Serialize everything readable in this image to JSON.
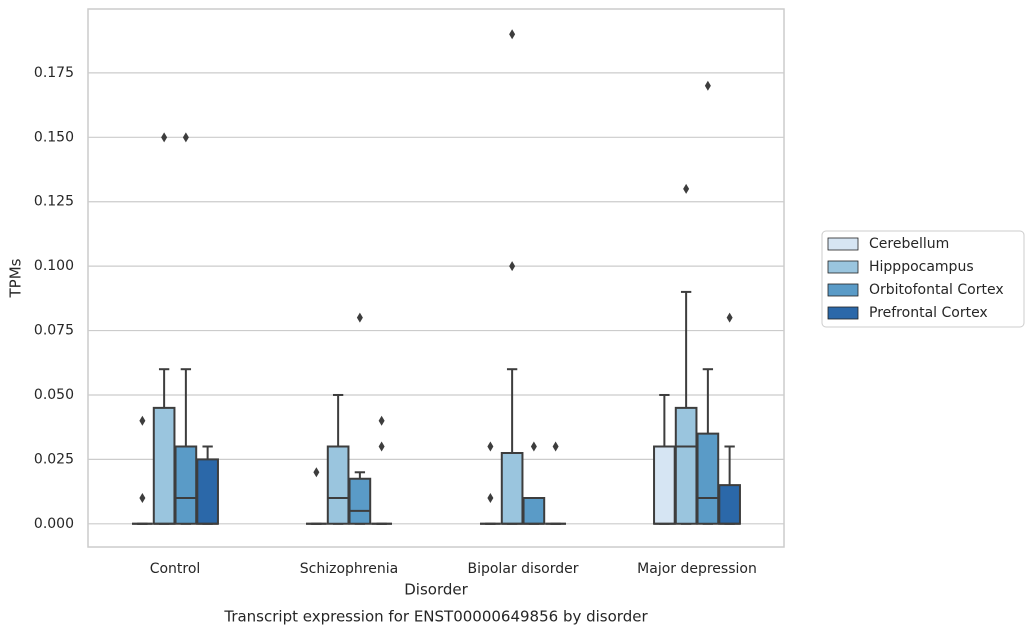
{
  "chart_data": {
    "type": "box",
    "caption": "Transcript expression for ENST00000649856 by disorder",
    "xlabel": "Disorder",
    "ylabel": "TPMs",
    "categories": [
      "Control",
      "Schizophrenia",
      "Bipolar disorder",
      "Major depression"
    ],
    "ylim": [
      -0.009,
      0.1998
    ],
    "yticks": [
      {
        "value": 0,
        "label": "0.000"
      },
      {
        "value": 0.025,
        "label": "0.025"
      },
      {
        "value": 0.05,
        "label": "0.050"
      },
      {
        "value": 0.075,
        "label": "0.075"
      },
      {
        "value": 0.1,
        "label": "0.100"
      },
      {
        "value": 0.125,
        "label": "0.125"
      },
      {
        "value": 0.15,
        "label": "0.150"
      },
      {
        "value": 0.175,
        "label": "0.175"
      }
    ],
    "grid": true,
    "legend": "right",
    "series": [
      {
        "name": "Cerebellum",
        "color": "#d6e5f3",
        "boxes": [
          {
            "low": 0,
            "q1": 0,
            "median": 0,
            "q3": 0,
            "high": 0,
            "outliers": [
              0.04,
              0.01
            ]
          },
          {
            "low": 0,
            "q1": 0,
            "median": 0,
            "q3": 0,
            "high": 0,
            "outliers": [
              0.02
            ]
          },
          {
            "low": 0,
            "q1": 0,
            "median": 0,
            "q3": 0,
            "high": 0,
            "outliers": [
              0.03,
              0.01
            ]
          },
          {
            "low": 0,
            "q1": 0,
            "median": 0,
            "q3": 0.03,
            "high": 0.05,
            "outliers": []
          }
        ]
      },
      {
        "name": "Hipppocampus",
        "color": "#9ac5de",
        "boxes": [
          {
            "low": 0,
            "q1": 0,
            "median": 0,
            "q3": 0.045,
            "high": 0.06,
            "outliers": [
              0.15
            ]
          },
          {
            "low": 0,
            "q1": 0,
            "median": 0.01,
            "q3": 0.03,
            "high": 0.05,
            "outliers": []
          },
          {
            "low": 0,
            "q1": 0,
            "median": 0,
            "q3": 0.0275,
            "high": 0.06,
            "outliers": [
              0.19,
              0.1
            ]
          },
          {
            "low": 0,
            "q1": 0,
            "median": 0.03,
            "q3": 0.045,
            "high": 0.09,
            "outliers": [
              0.13
            ]
          }
        ]
      },
      {
        "name": "Orbitofontal Cortex",
        "color": "#5a9bc7",
        "boxes": [
          {
            "low": 0,
            "q1": 0,
            "median": 0.01,
            "q3": 0.03,
            "high": 0.06,
            "outliers": [
              0.15
            ]
          },
          {
            "low": 0,
            "q1": 0,
            "median": 0.005,
            "q3": 0.0175,
            "high": 0.02,
            "outliers": [
              0.08
            ]
          },
          {
            "low": 0,
            "q1": 0,
            "median": 0,
            "q3": 0.01,
            "high": 0.01,
            "outliers": [
              0.03
            ]
          },
          {
            "low": 0,
            "q1": 0,
            "median": 0.01,
            "q3": 0.035,
            "high": 0.06,
            "outliers": [
              0.17
            ]
          }
        ]
      },
      {
        "name": "Prefrontal Cortex",
        "color": "#2b68a9",
        "boxes": [
          {
            "low": 0,
            "q1": 0,
            "median": 0,
            "q3": 0.025,
            "high": 0.03,
            "outliers": []
          },
          {
            "low": 0,
            "q1": 0,
            "median": 0,
            "q3": 0,
            "high": 0,
            "outliers": [
              0.04,
              0.03
            ]
          },
          {
            "low": 0,
            "q1": 0,
            "median": 0,
            "q3": 0,
            "high": 0,
            "outliers": [
              0.03
            ]
          },
          {
            "low": 0,
            "q1": 0,
            "median": 0,
            "q3": 0.015,
            "high": 0.03,
            "outliers": [
              0.08
            ]
          }
        ]
      }
    ]
  }
}
